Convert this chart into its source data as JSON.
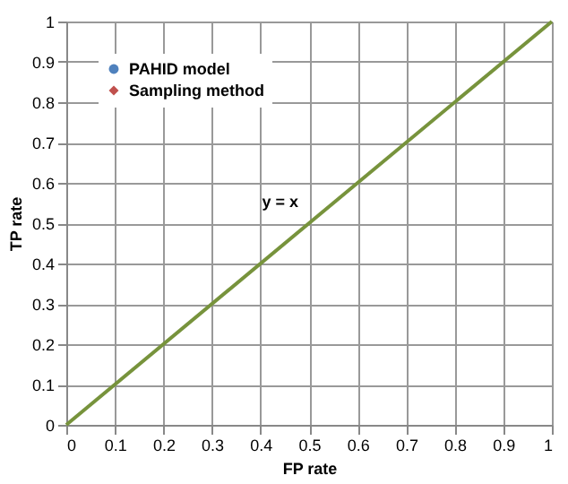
{
  "chart_data": {
    "type": "scatter",
    "xlabel": "FP rate",
    "ylabel": "TP rate",
    "xlim": [
      0,
      1
    ],
    "ylim": [
      0,
      1
    ],
    "xticks": [
      0,
      0.1,
      0.2,
      0.3,
      0.4,
      0.5,
      0.6,
      0.7,
      0.8,
      0.9,
      1
    ],
    "yticks": [
      0,
      0.1,
      0.2,
      0.3,
      0.4,
      0.5,
      0.6,
      0.7,
      0.8,
      0.9,
      1
    ],
    "grid": true,
    "legend": "top left",
    "series": [
      {
        "name": "PAHID model",
        "color": "#4f81bd",
        "marker": "circle"
      },
      {
        "name": "Sampling method",
        "color": "#c0504d",
        "marker": "diamond"
      },
      {
        "name": "y = x",
        "type": "line",
        "color": "#77933c",
        "marker": "none",
        "x": [
          0,
          1
        ],
        "values": [
          0,
          1
        ]
      }
    ]
  }
}
